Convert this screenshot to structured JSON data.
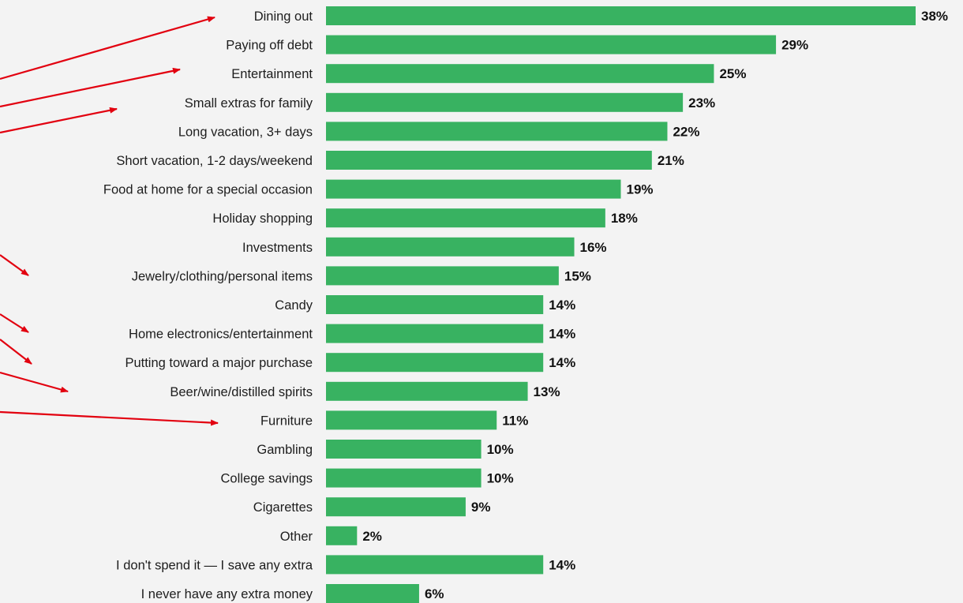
{
  "chart_data": {
    "type": "bar",
    "orientation": "horizontal",
    "categories": [
      "Dining out",
      "Paying off debt",
      "Entertainment",
      "Small extras for family",
      "Long vacation, 3+ days",
      "Short vacation, 1-2 days/weekend",
      "Food at home for a special occasion",
      "Holiday shopping",
      "Investments",
      "Jewelry/clothing/personal items",
      "Candy",
      "Home electronics/entertainment",
      "Putting toward a major purchase",
      "Beer/wine/distilled spirits",
      "Furniture",
      "Gambling",
      "College savings",
      "Cigarettes",
      "Other",
      "I don't spend it — I save any extra",
      "I never have any extra money"
    ],
    "values": [
      38,
      29,
      25,
      23,
      22,
      21,
      19,
      18,
      16,
      15,
      14,
      14,
      14,
      13,
      11,
      10,
      10,
      9,
      2,
      14,
      6
    ],
    "value_labels": [
      "38%",
      "29%",
      "25%",
      "23%",
      "22%",
      "21%",
      "19%",
      "18%",
      "16%",
      "15%",
      "14%",
      "14%",
      "14%",
      "13%",
      "11%",
      "10%",
      "10%",
      "9%",
      "2%",
      "14%",
      "6%"
    ],
    "title": "",
    "xlabel": "",
    "ylabel": "",
    "xlim": [
      0,
      38
    ],
    "grid": false,
    "legend": "none",
    "bar_color": "#38b261",
    "annotation_color": "#e2000f",
    "annotations": {
      "type": "arrows",
      "count": 8,
      "pointing_to": [
        "Dining out",
        "Entertainment",
        "Small extras for family",
        "Jewelry/clothing/personal items",
        "Home electronics/entertainment",
        "Putting toward a major purchase",
        "Beer/wine/distilled spirits",
        "Furniture"
      ]
    }
  }
}
